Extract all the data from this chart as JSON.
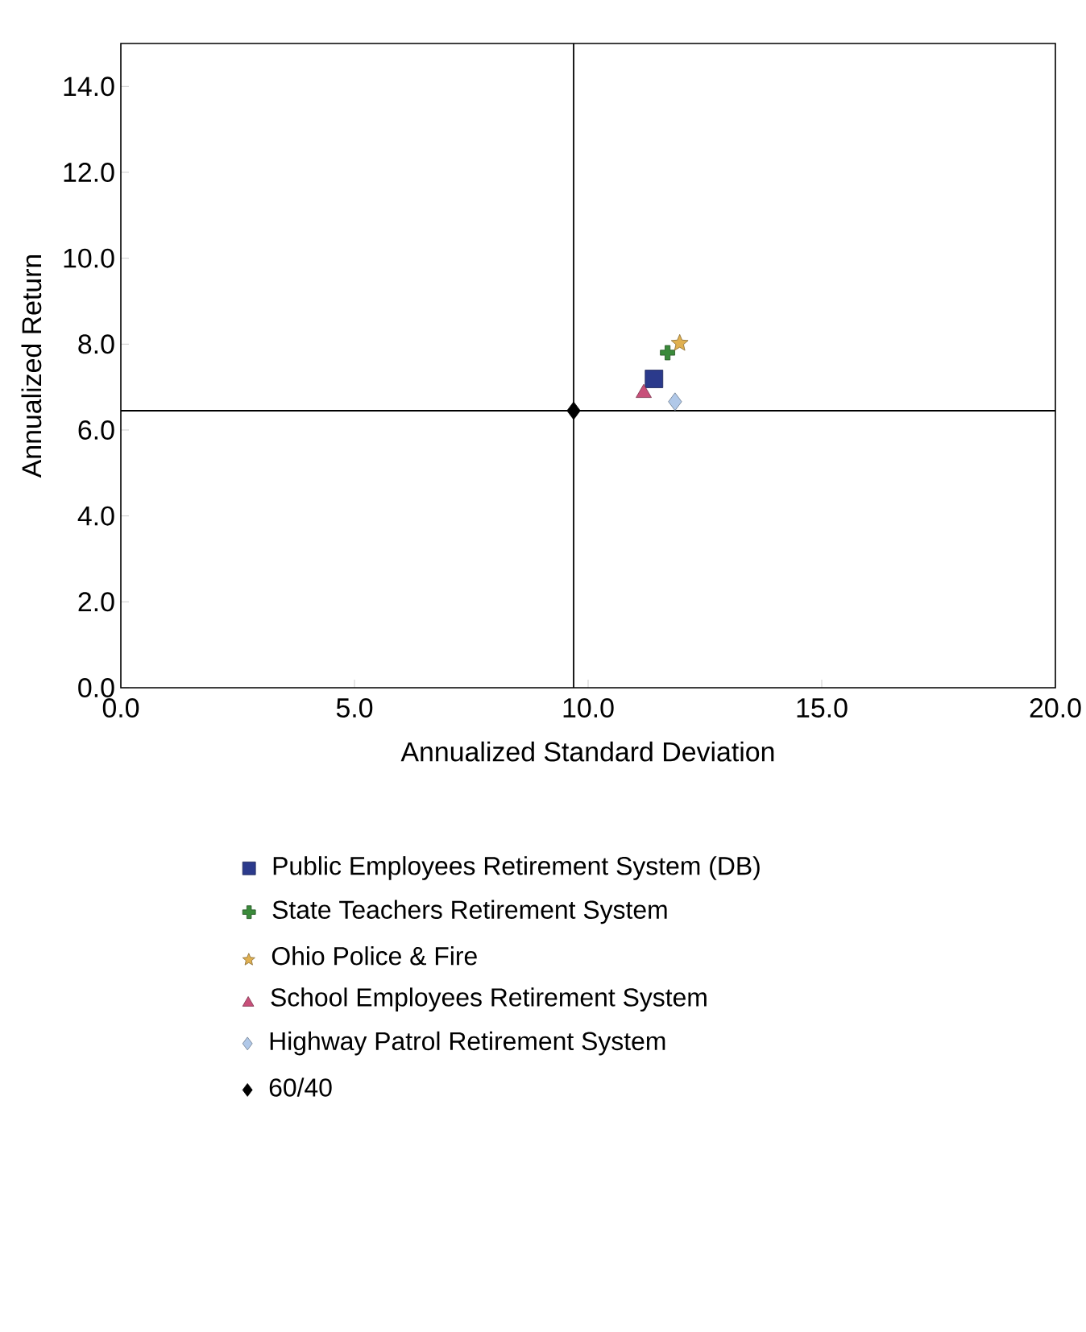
{
  "chart_data": {
    "type": "scatter",
    "xlabel": "Annualized Standard Deviation",
    "ylabel": "Annualized Return",
    "xlim": [
      0,
      20
    ],
    "ylim": [
      0,
      15
    ],
    "xticks": [
      {
        "value": 0,
        "label": "0.0"
      },
      {
        "value": 5,
        "label": "5.0"
      },
      {
        "value": 10,
        "label": "10.0"
      },
      {
        "value": 15,
        "label": "15.0"
      },
      {
        "value": 20,
        "label": "20.0"
      }
    ],
    "yticks": [
      {
        "value": 0,
        "label": "0.0"
      },
      {
        "value": 2,
        "label": "2.0"
      },
      {
        "value": 4,
        "label": "4.0"
      },
      {
        "value": 6,
        "label": "6.0"
      },
      {
        "value": 8,
        "label": "8.0"
      },
      {
        "value": 10,
        "label": "10.0"
      },
      {
        "value": 12,
        "label": "12.0"
      },
      {
        "value": 14,
        "label": "14.0"
      }
    ],
    "grid": false,
    "legend": "bottom",
    "ref_lines": [
      {
        "axis": "x",
        "value": 9.69,
        "color": "#000000"
      },
      {
        "axis": "y",
        "value": 6.45,
        "color": "#000000"
      }
    ],
    "series": [
      {
        "name": "Public Employees Retirement System (DB)",
        "color": "#2b3a8c",
        "marker": "square",
        "x": [
          11.41
        ],
        "values": [
          7.19
        ]
      },
      {
        "name": "State Teachers Retirement System",
        "color": "#3a8a3a",
        "marker": "cross",
        "x": [
          11.7
        ],
        "values": [
          7.8
        ]
      },
      {
        "name": "Ohio Police & Fire",
        "color": "#e0b050",
        "marker": "star",
        "x": [
          11.96
        ],
        "values": [
          8.02
        ]
      },
      {
        "name": "School Employees Retirement System",
        "color": "#c8507a",
        "marker": "triangle",
        "x": [
          11.19
        ],
        "values": [
          6.86
        ]
      },
      {
        "name": "Highway Patrol Retirement System",
        "color": "#b0c8e8",
        "marker": "diamond",
        "x": [
          11.86
        ],
        "values": [
          6.66
        ]
      },
      {
        "name": "60/40",
        "color": "#000000",
        "marker": "diamond",
        "x": [
          9.69
        ],
        "values": [
          6.45
        ]
      }
    ]
  }
}
